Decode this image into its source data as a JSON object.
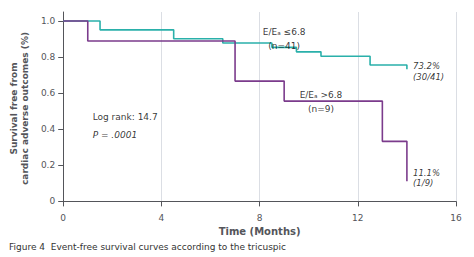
{
  "chart_data": {
    "type": "line",
    "line_style": "step",
    "xlabel": "Time (Months)",
    "ylabel": "Survival free from\ncardiac adverse outcomes (%)",
    "xlim": [
      0,
      16
    ],
    "ylim": [
      -0.02,
      1.05
    ],
    "xticks": [
      0,
      4,
      8,
      12,
      16
    ],
    "yticks": [
      0,
      0.2,
      0.4,
      0.6,
      0.8,
      {
        "value": 1.0,
        "label": "1.0"
      }
    ],
    "grid": "x",
    "background_color": "#ffffff",
    "series": [
      {
        "color": "#2ab0aa",
        "x": [
          0,
          1.5,
          4.5,
          6.5,
          8.5,
          9.5,
          10.5,
          12.5,
          14.0
        ],
        "values": [
          1.0,
          0.951,
          0.902,
          0.878,
          0.854,
          0.829,
          0.805,
          0.756,
          0.732
        ]
      },
      {
        "color": "#7b3b8c",
        "x": [
          0,
          1.0,
          5.5,
          7.0,
          9.0,
          13.0,
          14.0
        ],
        "values": [
          1.0,
          0.889,
          0.889,
          0.667,
          0.556,
          0.333,
          0.111
        ]
      }
    ],
    "annotations": [
      {
        "text": "E/Eₐ ≤6.8",
        "x": 9.0,
        "y": 0.97
      },
      {
        "text": "(n=41)",
        "x": 9.0,
        "y": 0.89
      },
      {
        "text": "E/Eₐ >6.8",
        "x": 10.5,
        "y": 0.62
      },
      {
        "text": "(n=9)",
        "x": 10.5,
        "y": 0.54
      }
    ],
    "stat_texts": [
      {
        "text": "Log rank: 14.7",
        "x": 1.2,
        "y": 0.5
      },
      {
        "text": "P = .0001",
        "x": 1.2,
        "y": 0.4
      }
    ],
    "end_labels": [
      {
        "text": "73.2%\n(30/41)",
        "x": 14.25,
        "y": 0.72
      },
      {
        "text": "11.1%\n(1/9)",
        "x": 14.25,
        "y": 0.13
      }
    ],
    "caption": "Figure 4  Event-free survival curves according to the tricuspic"
  }
}
